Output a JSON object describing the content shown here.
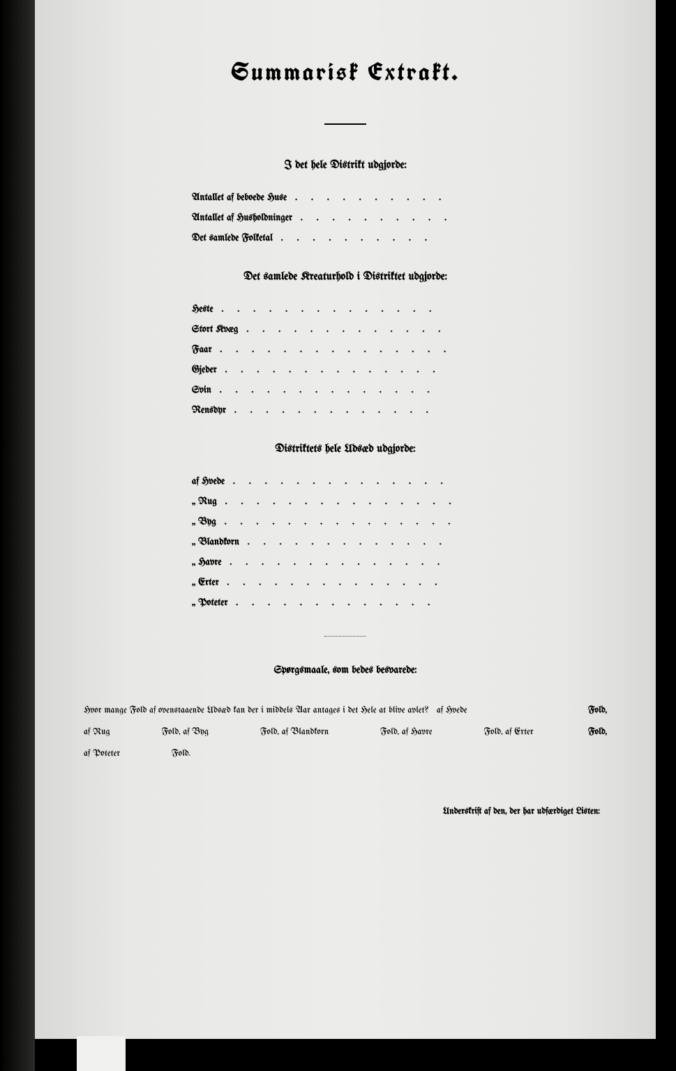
{
  "title": "Summarisk Extrakt.",
  "section1": {
    "header": "I det hele Distrikt udgjorde:",
    "items": [
      "Antallet af beboede Huse",
      "Antallet af Husholdninger",
      "Det samlede Folketal"
    ]
  },
  "section2": {
    "header": "Det samlede Kreaturhold i Distriktet udgjorde:",
    "items": [
      "Heste",
      "Stort Kvæg",
      "Faar",
      "Gjeder",
      "Svin",
      "Rensdyr"
    ]
  },
  "section3": {
    "header": "Distriktets hele Udsæd udgjorde:",
    "items": [
      "af Hvede",
      "„ Rug",
      "„ Byg",
      "„ Blandkorn",
      "„ Havre",
      "„ Erter",
      "„ Poteter"
    ]
  },
  "questions": {
    "header": "Spørgsmaale, som bedes besvarede:",
    "intro": "Hvor mange Fold af ovenstaaende Udsæd kan der i middels Aar antages i det Hele at blive avlet?",
    "crops": [
      {
        "label": "af Hvede",
        "suffix": "Fold,"
      },
      {
        "label": "af Rug",
        "suffix": "Fold,"
      },
      {
        "label": "af Byg",
        "suffix": "Fold,"
      },
      {
        "label": "af Blandkorn",
        "suffix": "Fold,"
      },
      {
        "label": "af Havre",
        "suffix": "Fold,"
      },
      {
        "label": "af Erter",
        "suffix": "Fold,"
      },
      {
        "label": "af Poteter",
        "suffix": "Fold."
      }
    ]
  },
  "signature": "Underskrift af den, der har udfærdiget Listen:",
  "colors": {
    "page_bg": "#e8e8e6",
    "text": "#000000",
    "frame": "#000000"
  },
  "typography": {
    "title_size": 36,
    "header_size": 16,
    "body_size": 14,
    "family": "blackletter"
  }
}
